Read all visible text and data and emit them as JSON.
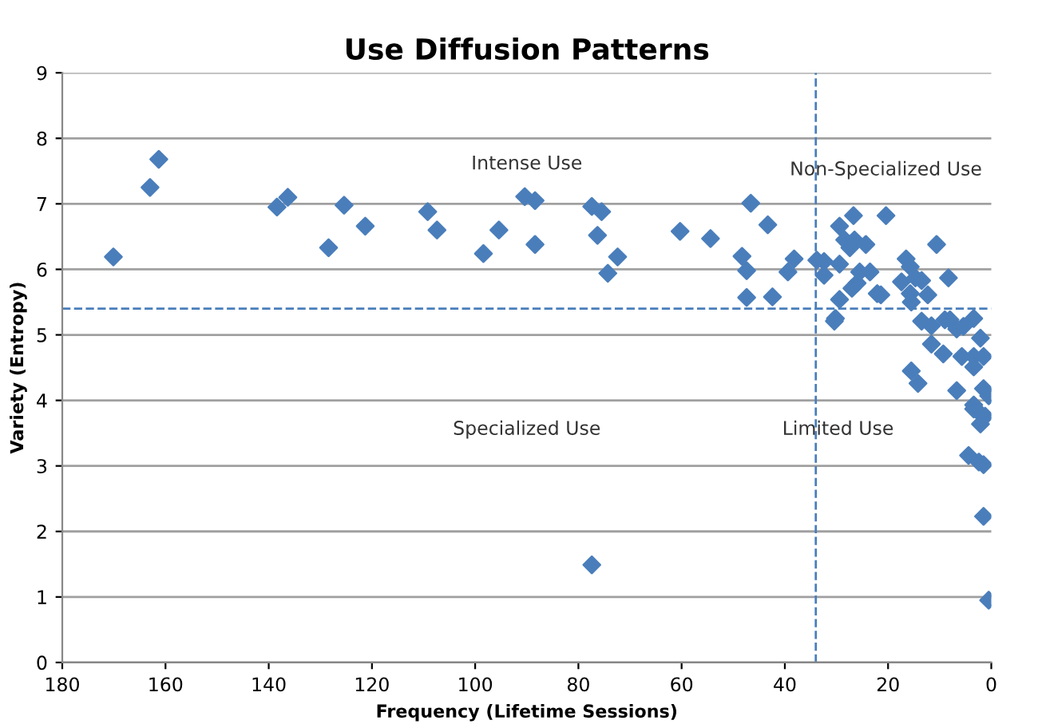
{
  "chart_data": {
    "type": "scatter",
    "title": "Use Diffusion Patterns",
    "xlabel": "Frequency (Lifetime Sessions)",
    "ylabel": "Variety (Entropy)",
    "xlim": [
      180,
      0
    ],
    "xticks": [
      180,
      160,
      140,
      120,
      100,
      80,
      60,
      40,
      20,
      0
    ],
    "ylim": [
      0,
      9
    ],
    "yticks": [
      0,
      1,
      2,
      3,
      4,
      5,
      6,
      7,
      8,
      9
    ],
    "grid": "y",
    "marker": "diamond",
    "legend": false,
    "series": [
      {
        "color": "#4a7ebb",
        "x": [
          170.1,
          163.0,
          161.3,
          138.4,
          136.3,
          128.4,
          125.4,
          121.3,
          109.2,
          107.4,
          98.4,
          95.4,
          90.4,
          88.4,
          88.4,
          77.4,
          75.5,
          76.3,
          72.4,
          74.3,
          77.4,
          60.3,
          54.4,
          46.6,
          43.3,
          48.3,
          47.4,
          47.4,
          42.4,
          39.4,
          38.2,
          33.8,
          32.4,
          32.4,
          30.4,
          30.2,
          29.4,
          26.7,
          20.4,
          29.4,
          29.4,
          28.4,
          27.4,
          26.5,
          24.3,
          27.0,
          26.0,
          23.5,
          25.5,
          22.1,
          21.4,
          10.6,
          16.5,
          15.7,
          17.4,
          14.7,
          13.5,
          15.7,
          15.5,
          12.3,
          8.3,
          13.5,
          11.6,
          9.0,
          8.0,
          6.7,
          5.4,
          3.4,
          2.1,
          11.6,
          9.3,
          5.7,
          3.4,
          1.5,
          3.4,
          15.5,
          14.2,
          6.7,
          1.5,
          0.5,
          3.4,
          2.4,
          1.2,
          2.1,
          3.4,
          4.4,
          1.5,
          2.4,
          1.5,
          0.5
        ],
        "values": [
          6.19,
          7.25,
          7.68,
          6.95,
          7.1,
          6.33,
          6.98,
          6.66,
          6.88,
          6.6,
          6.24,
          6.6,
          7.11,
          6.38,
          7.05,
          6.96,
          6.88,
          6.52,
          6.19,
          5.94,
          1.49,
          6.58,
          6.47,
          7.01,
          6.68,
          6.2,
          5.98,
          5.57,
          5.58,
          5.96,
          6.16,
          6.14,
          6.12,
          5.91,
          5.21,
          5.25,
          6.66,
          6.82,
          6.82,
          6.08,
          5.54,
          6.45,
          6.33,
          6.45,
          6.38,
          5.71,
          5.79,
          5.96,
          5.96,
          5.63,
          5.61,
          6.38,
          6.16,
          6.04,
          5.81,
          5.87,
          5.83,
          5.63,
          5.5,
          5.61,
          5.87,
          5.21,
          5.14,
          5.23,
          5.23,
          5.09,
          5.13,
          5.25,
          4.95,
          4.86,
          4.71,
          4.67,
          4.67,
          4.67,
          4.51,
          4.45,
          4.26,
          4.15,
          4.18,
          4.07,
          3.93,
          3.82,
          3.76,
          3.64,
          3.87,
          3.16,
          3.02,
          3.06,
          2.23,
          0.95
        ]
      }
    ],
    "ref_lines": [
      {
        "axis": "x",
        "value": 34,
        "color": "#4a7ebb",
        "line_style": "dashed"
      },
      {
        "axis": "y",
        "value": 5.4,
        "color": "#4a7ebb",
        "line_style": "dashed"
      }
    ],
    "annotations": [
      "Intense Use",
      "Non-Specialized Use",
      "Specialized Use",
      "Limited Use"
    ]
  }
}
